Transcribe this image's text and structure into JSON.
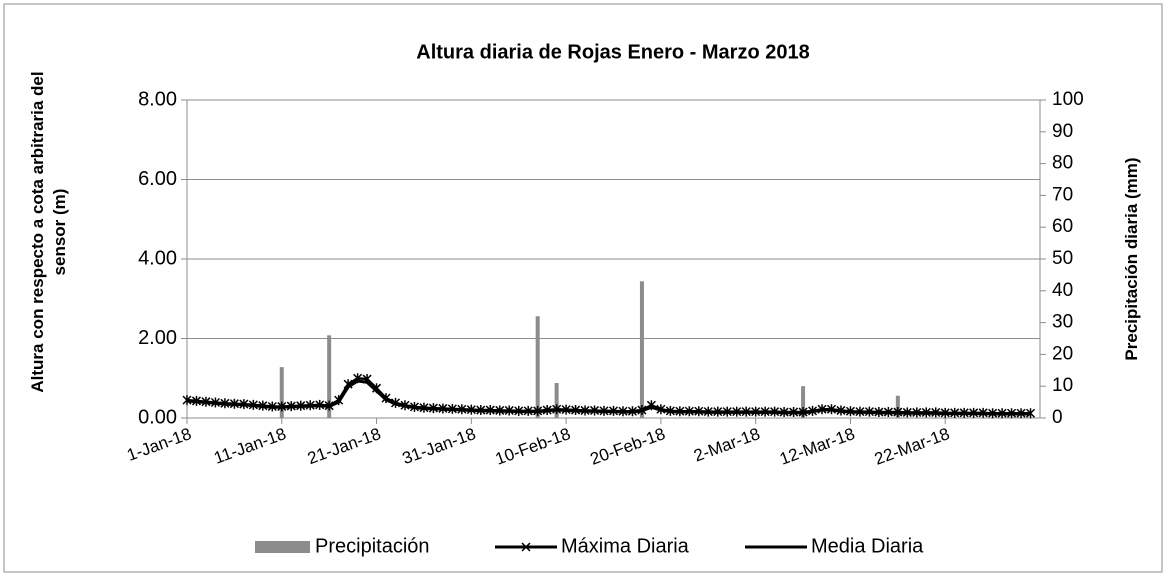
{
  "chart_data": {
    "type": "bar-line",
    "title": "Altura diaria de Rojas Enero - Marzo 2018",
    "y_label": "Altura con respecto a cota arbitraria del sensor (m)",
    "y2_label": "Precipitación diaria (mm)",
    "categories": [
      "1-Jan-18",
      null,
      null,
      null,
      null,
      null,
      null,
      null,
      null,
      null,
      "11-Jan-18",
      null,
      null,
      null,
      null,
      null,
      null,
      null,
      null,
      null,
      "21-Jan-18",
      null,
      null,
      null,
      null,
      null,
      null,
      null,
      null,
      null,
      "31-Jan-18",
      null,
      null,
      null,
      null,
      null,
      null,
      null,
      null,
      null,
      "10-Feb-18",
      null,
      null,
      null,
      null,
      null,
      null,
      null,
      null,
      null,
      "20-Feb-18",
      null,
      null,
      null,
      null,
      null,
      null,
      null,
      null,
      null,
      "2-Mar-18",
      null,
      null,
      null,
      null,
      null,
      null,
      null,
      null,
      null,
      "12-Mar-18",
      null,
      null,
      null,
      null,
      null,
      null,
      null,
      null,
      null,
      "22-Mar-18",
      null,
      null,
      null,
      null,
      null,
      null,
      null,
      null,
      null
    ],
    "series": [
      {
        "name": "Precipitación",
        "color": "#8c8c8c",
        "kind": "bar",
        "axis": "y2",
        "values": [
          0,
          0,
          0,
          0,
          0,
          0,
          0,
          0,
          0,
          0,
          16,
          0,
          0,
          0,
          0,
          26,
          0,
          0,
          0,
          0,
          0,
          0,
          0,
          0,
          0,
          0,
          0,
          0,
          0,
          0,
          0,
          0,
          0,
          0,
          0,
          0,
          0,
          32,
          0,
          11,
          0,
          0,
          0,
          0,
          0,
          0,
          0,
          0,
          43,
          0,
          0,
          0,
          0,
          0,
          0,
          0,
          0,
          0,
          0,
          0,
          0,
          0,
          0,
          0,
          0,
          10,
          0,
          0,
          0,
          0,
          0,
          0,
          0,
          0,
          0,
          7,
          0,
          0,
          0,
          0,
          0,
          0,
          0,
          0,
          0,
          0,
          0,
          0,
          0,
          0
        ]
      },
      {
        "name": "Máxima Diaria",
        "color": "#000000",
        "kind": "line",
        "marker": "star",
        "values": [
          0.45,
          0.43,
          0.41,
          0.39,
          0.37,
          0.36,
          0.35,
          0.33,
          0.31,
          0.29,
          0.29,
          0.3,
          0.31,
          0.32,
          0.33,
          0.31,
          0.45,
          0.85,
          1.0,
          0.98,
          0.75,
          0.5,
          0.38,
          0.32,
          0.28,
          0.26,
          0.25,
          0.24,
          0.23,
          0.22,
          0.21,
          0.2,
          0.2,
          0.19,
          0.19,
          0.18,
          0.18,
          0.18,
          0.2,
          0.22,
          0.21,
          0.2,
          0.19,
          0.19,
          0.18,
          0.18,
          0.17,
          0.17,
          0.2,
          0.32,
          0.22,
          0.18,
          0.17,
          0.17,
          0.17,
          0.16,
          0.16,
          0.16,
          0.16,
          0.16,
          0.16,
          0.16,
          0.16,
          0.15,
          0.15,
          0.15,
          0.18,
          0.22,
          0.22,
          0.19,
          0.17,
          0.16,
          0.16,
          0.15,
          0.15,
          0.15,
          0.14,
          0.14,
          0.14,
          0.14,
          0.13,
          0.13,
          0.13,
          0.13,
          0.13,
          0.12,
          0.12,
          0.12,
          0.12,
          0.12
        ]
      },
      {
        "name": "Media Diaria",
        "color": "#000000",
        "kind": "line",
        "marker": "none",
        "values": [
          0.43,
          0.41,
          0.39,
          0.37,
          0.35,
          0.34,
          0.33,
          0.31,
          0.29,
          0.27,
          0.27,
          0.28,
          0.29,
          0.3,
          0.31,
          0.29,
          0.4,
          0.78,
          0.93,
          0.9,
          0.68,
          0.46,
          0.35,
          0.3,
          0.26,
          0.24,
          0.23,
          0.22,
          0.21,
          0.2,
          0.19,
          0.18,
          0.18,
          0.17,
          0.17,
          0.16,
          0.16,
          0.16,
          0.18,
          0.2,
          0.19,
          0.18,
          0.17,
          0.17,
          0.16,
          0.16,
          0.15,
          0.15,
          0.18,
          0.27,
          0.2,
          0.16,
          0.15,
          0.15,
          0.15,
          0.14,
          0.14,
          0.14,
          0.14,
          0.14,
          0.14,
          0.14,
          0.14,
          0.13,
          0.13,
          0.13,
          0.16,
          0.2,
          0.2,
          0.17,
          0.15,
          0.14,
          0.14,
          0.13,
          0.13,
          0.13,
          0.12,
          0.12,
          0.12,
          0.12,
          0.11,
          0.11,
          0.11,
          0.11,
          0.11,
          0.1,
          0.1,
          0.1,
          0.1,
          0.1
        ]
      }
    ],
    "ylim": [
      0,
      8
    ],
    "yticks": [
      {
        "value": 0,
        "label": "0.00"
      },
      {
        "value": 2,
        "label": "2.00"
      },
      {
        "value": 4,
        "label": "4.00"
      },
      {
        "value": 6,
        "label": "6.00"
      },
      {
        "value": 8,
        "label": "8.00"
      }
    ],
    "y2lim": [
      0,
      100
    ],
    "y2ticks": [
      0,
      10,
      20,
      30,
      40,
      50,
      60,
      70,
      80,
      90,
      100
    ],
    "grid": true,
    "legend": "bottom"
  }
}
